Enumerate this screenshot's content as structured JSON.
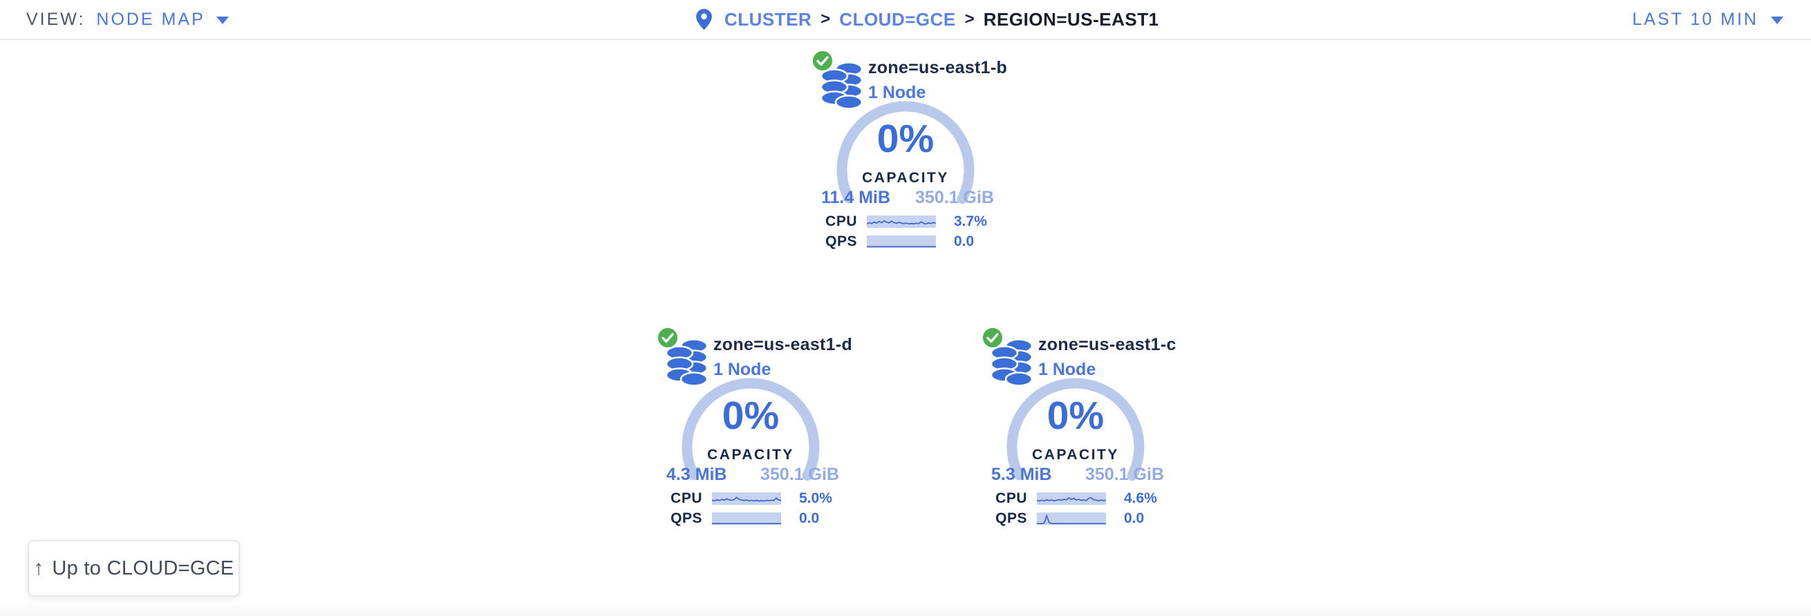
{
  "header": {
    "view_label": "VIEW:",
    "view_value": "NODE MAP",
    "separator": ">",
    "breadcrumb": [
      {
        "label": "CLUSTER"
      },
      {
        "label": "CLOUD=GCE"
      },
      {
        "label": "REGION=US-EAST1"
      }
    ],
    "time_range": "LAST 10 MIN"
  },
  "zones": [
    {
      "title": "zone=us-east1-b",
      "subtitle": "1 Node",
      "status_icon": "check-circle",
      "capacity_pct": "0%",
      "capacity_label": "CAPACITY",
      "used": "11.4 MiB",
      "total": "350.1 GiB",
      "cpu_label": "CPU",
      "cpu_value": "3.7%",
      "qps_label": "QPS",
      "qps_value": "0.0",
      "cpu_spark": [
        0.3,
        0.42,
        0.33,
        0.5,
        0.38,
        0.55,
        0.42,
        0.62,
        0.48,
        0.4,
        0.58,
        0.44,
        0.36,
        0.46,
        0.4,
        0.32,
        0.38,
        0.3,
        0.34,
        0.3,
        0.36,
        0.32,
        0.52,
        0.36,
        0.3,
        0.4,
        0.34,
        0.44,
        0.38
      ],
      "qps_spark": [
        0,
        0,
        0,
        0,
        0,
        0,
        0,
        0,
        0,
        0,
        0,
        0,
        0,
        0,
        0,
        0,
        0,
        0,
        0,
        0,
        0,
        0,
        0,
        0,
        0,
        0,
        0,
        0,
        0
      ]
    },
    {
      "title": "zone=us-east1-d",
      "subtitle": "1 Node",
      "status_icon": "check-circle",
      "capacity_pct": "0%",
      "capacity_label": "CAPACITY",
      "used": "4.3 MiB",
      "total": "350.1 GiB",
      "cpu_label": "CPU",
      "cpu_value": "5.0%",
      "qps_label": "QPS",
      "qps_value": "0.0",
      "cpu_spark": [
        0.36,
        0.3,
        0.4,
        0.34,
        0.44,
        0.38,
        0.5,
        0.4,
        0.34,
        0.44,
        0.66,
        0.46,
        0.38,
        0.32,
        0.38,
        0.3,
        0.36,
        0.28,
        0.34,
        0.28,
        0.32,
        0.28,
        0.34,
        0.3,
        0.36,
        0.32,
        0.58,
        0.4,
        0.34
      ],
      "qps_spark": [
        0,
        0,
        0,
        0,
        0,
        0,
        0,
        0,
        0,
        0,
        0,
        0,
        0,
        0,
        0,
        0,
        0,
        0,
        0,
        0,
        0,
        0,
        0,
        0,
        0,
        0,
        0,
        0,
        0
      ]
    },
    {
      "title": "zone=us-east1-c",
      "subtitle": "1 Node",
      "status_icon": "check-circle",
      "capacity_pct": "0%",
      "capacity_label": "CAPACITY",
      "used": "5.3 MiB",
      "total": "350.1 GiB",
      "cpu_label": "CPU",
      "cpu_value": "4.6%",
      "qps_label": "QPS",
      "qps_value": "0.0",
      "cpu_spark": [
        0.32,
        0.28,
        0.36,
        0.3,
        0.4,
        0.32,
        0.38,
        0.3,
        0.36,
        0.42,
        0.34,
        0.46,
        0.4,
        0.62,
        0.44,
        0.56,
        0.38,
        0.46,
        0.34,
        0.4,
        0.32,
        0.56,
        0.62,
        0.42,
        0.36,
        0.3,
        0.38,
        0.32,
        0.36
      ],
      "qps_spark": [
        0,
        0,
        0,
        0.06,
        0.85,
        0.1,
        0.02,
        0,
        0,
        0,
        0,
        0,
        0,
        0,
        0,
        0,
        0,
        0,
        0,
        0,
        0,
        0,
        0,
        0,
        0,
        0,
        0,
        0,
        0
      ]
    }
  ],
  "up_button": {
    "label": "Up to CLOUD=GCE",
    "icon": "arrow-up"
  },
  "colors": {
    "accent_blue": "#4a76e2",
    "value_blue": "#3b6dd8",
    "light_ring_blue": "#b9c9ec",
    "spark_bg": "#c5d3f0",
    "spark_line": "#3d63c8",
    "used_blue": "#4a74d9",
    "total_light_blue": "#92abe6",
    "dark_navy": "#152849",
    "healthy_green": "#4caf50",
    "db_icon_blue": "#3b6fd8"
  }
}
